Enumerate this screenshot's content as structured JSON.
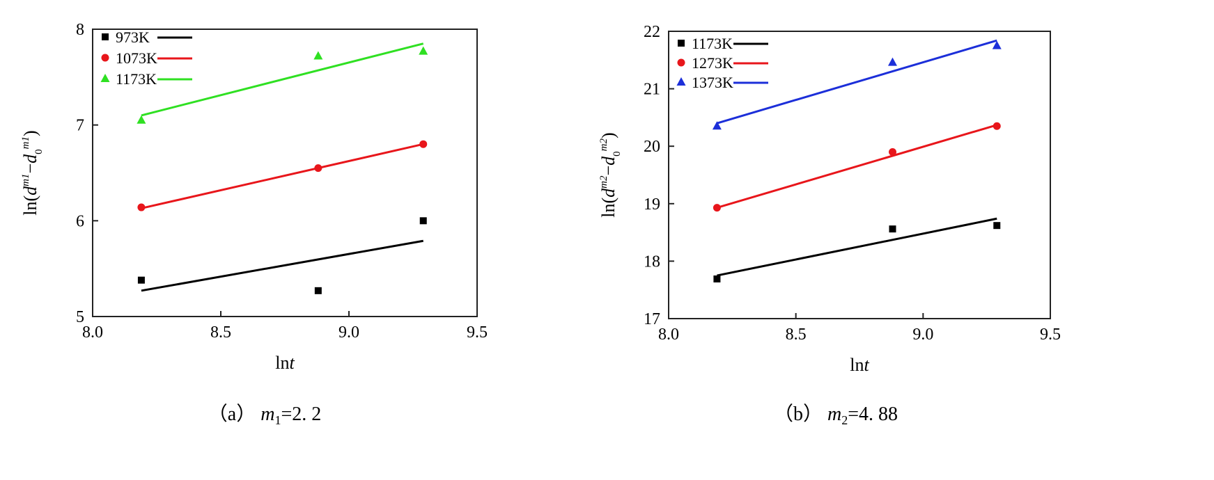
{
  "chart_data": [
    {
      "type": "scatter",
      "panel_caption": "（a）",
      "caption_var": "m",
      "caption_sub": "1",
      "caption_value": "=2. 2",
      "xlabel_prefix": "ln",
      "xlabel_var": "t",
      "ylabel_text": "ln(d^m1 − d_0^m1)",
      "xlim": [
        8.0,
        9.5
      ],
      "ylim": [
        5,
        8
      ],
      "xticks": [
        "8.0",
        "8.5",
        "9.0",
        "9.5"
      ],
      "yticks": [
        "5",
        "6",
        "7",
        "8"
      ],
      "legend_position": "top-left",
      "series": [
        {
          "name": "973K",
          "color": "#000000",
          "marker": "square",
          "x": [
            8.19,
            8.88,
            9.29
          ],
          "y": [
            5.38,
            5.27,
            6.0
          ],
          "fit_x": [
            8.19,
            9.29
          ],
          "fit_y": [
            5.27,
            5.79
          ]
        },
        {
          "name": "1073K",
          "color": "#e8161b",
          "marker": "circle",
          "x": [
            8.19,
            8.88,
            9.29
          ],
          "y": [
            6.14,
            6.55,
            6.8
          ],
          "fit_x": [
            8.19,
            9.29
          ],
          "fit_y": [
            6.13,
            6.8
          ]
        },
        {
          "name": "1173K",
          "color": "#2fe022",
          "marker": "triangle",
          "x": [
            8.19,
            8.88,
            9.29
          ],
          "y": [
            7.05,
            7.72,
            7.77
          ],
          "fit_x": [
            8.19,
            9.29
          ],
          "fit_y": [
            7.1,
            7.85
          ]
        }
      ]
    },
    {
      "type": "scatter",
      "panel_caption": "（b）",
      "caption_var": "m",
      "caption_sub": "2",
      "caption_value": "=4. 88",
      "xlabel_prefix": "ln",
      "xlabel_var": "t",
      "ylabel_text": "ln(d^m2 − d_0^m2)",
      "xlim": [
        8.0,
        9.5
      ],
      "ylim": [
        17,
        22
      ],
      "xticks": [
        "8.0",
        "8.5",
        "9.0",
        "9.5"
      ],
      "yticks": [
        "17",
        "18",
        "19",
        "20",
        "21",
        "22"
      ],
      "legend_position": "top-left",
      "series": [
        {
          "name": "1173K",
          "color": "#000000",
          "marker": "square",
          "x": [
            8.19,
            8.88,
            9.29
          ],
          "y": [
            17.69,
            18.56,
            18.62
          ],
          "fit_x": [
            8.19,
            9.29
          ],
          "fit_y": [
            17.75,
            18.74
          ]
        },
        {
          "name": "1273K",
          "color": "#e8161b",
          "marker": "circle",
          "x": [
            8.19,
            8.88,
            9.29
          ],
          "y": [
            18.93,
            19.9,
            20.35
          ],
          "fit_x": [
            8.19,
            9.29
          ],
          "fit_y": [
            18.93,
            20.37
          ]
        },
        {
          "name": "1373K",
          "color": "#1c2fd9",
          "marker": "triangle",
          "x": [
            8.19,
            8.88,
            9.29
          ],
          "y": [
            20.35,
            21.46,
            21.75
          ],
          "fit_x": [
            8.19,
            9.29
          ],
          "fit_y": [
            20.4,
            21.84
          ]
        }
      ]
    }
  ]
}
